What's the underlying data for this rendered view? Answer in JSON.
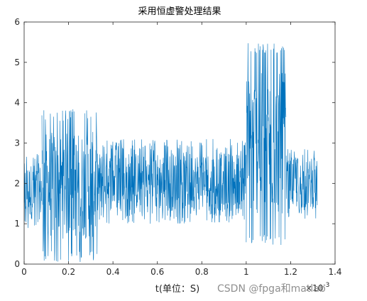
{
  "chart_data": {
    "type": "line",
    "title": "采用恒虚警处理结果",
    "xlabel": "t(单位：S)",
    "ylabel": "",
    "xlim": [
      0,
      1.4
    ],
    "ylim": [
      0,
      6
    ],
    "x_exponent_label": "×10",
    "x_exponent_power": "-3",
    "x_ticks": [
      "0",
      "0.2",
      "0.4",
      "0.6",
      "0.8",
      "1",
      "1.2",
      "1.4"
    ],
    "y_ticks": [
      "0",
      "1",
      "2",
      "3",
      "4",
      "5",
      "6"
    ],
    "grid": false,
    "series": [
      {
        "color": "#0072BD",
        "segments": [
          {
            "x_start": 0.0,
            "x_end": 0.08,
            "min": 0.8,
            "max": 2.8
          },
          {
            "x_start": 0.08,
            "x_end": 0.33,
            "min": 0.05,
            "max": 3.85
          },
          {
            "x_start": 0.33,
            "x_end": 1.0,
            "min": 1.0,
            "max": 3.1
          },
          {
            "x_start": 1.0,
            "x_end": 1.18,
            "min": 0.45,
            "max": 5.5
          },
          {
            "x_start": 1.18,
            "x_end": 1.32,
            "min": 1.1,
            "max": 2.85
          }
        ]
      }
    ]
  },
  "watermark": "CSDN @fpga和matlab"
}
